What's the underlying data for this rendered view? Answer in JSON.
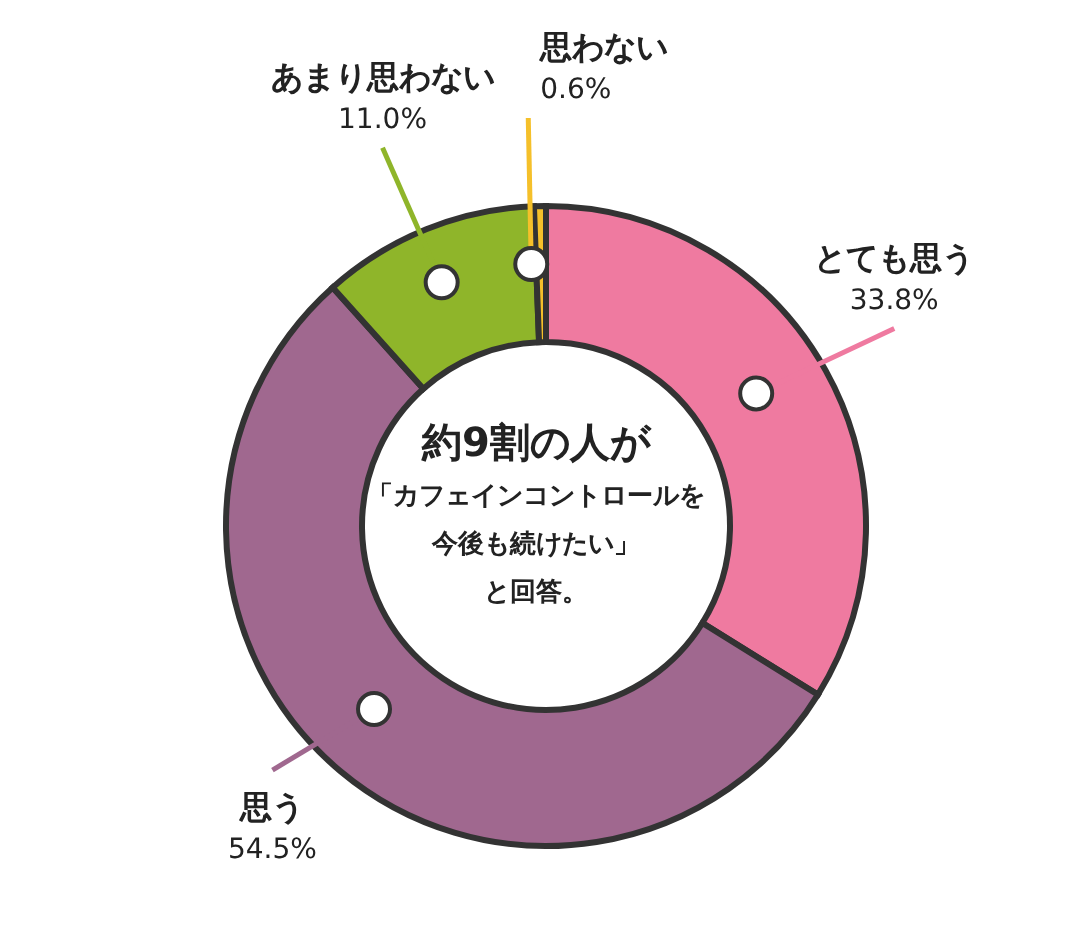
{
  "chart_data": {
    "type": "donut",
    "categories": [
      "とても思う",
      "思う",
      "あまり思わない",
      "思わない"
    ],
    "values": [
      33.8,
      54.5,
      11.0,
      0.6
    ],
    "colors": [
      "#ef7aa0",
      "#a0688f",
      "#8fb52a",
      "#f5c02a"
    ],
    "value_labels": [
      "33.8%",
      "54.5%",
      "11.0%",
      "0.6%"
    ],
    "annotations": [
      "約9割の人が",
      "「カフェインコントロールを",
      "今後も続けたい」",
      "と回答。"
    ],
    "legend": false
  }
}
